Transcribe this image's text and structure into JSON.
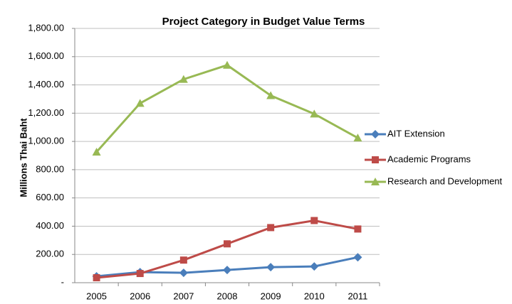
{
  "chart_data": {
    "type": "line",
    "title": "Project Category in Budget Value Terms",
    "y_label": "Millions Thai Baht",
    "categories": [
      "2005",
      "2006",
      "2007",
      "2008",
      "2009",
      "2010",
      "2011"
    ],
    "series": [
      {
        "name": "AIT Extension",
        "color": "#4a7ebb",
        "marker": "diamond",
        "values": [
          45,
          75,
          70,
          90,
          110,
          115,
          180
        ]
      },
      {
        "name": "Academic Programs",
        "color": "#be4b48",
        "marker": "square",
        "values": [
          35,
          65,
          160,
          275,
          390,
          440,
          380
        ]
      },
      {
        "name": "Research and Development",
        "color": "#98b954",
        "marker": "triangle",
        "values": [
          925,
          1270,
          1440,
          1540,
          1325,
          1195,
          1025
        ]
      }
    ],
    "ylim": [
      0,
      1800
    ],
    "yticks": [
      {
        "value": 0,
        "label": "-"
      },
      {
        "value": 200,
        "label": "200.00"
      },
      {
        "value": 400,
        "label": "400.00"
      },
      {
        "value": 600,
        "label": "600.00"
      },
      {
        "value": 800,
        "label": "800.00"
      },
      {
        "value": 1000,
        "label": "1,000.00"
      },
      {
        "value": 1200,
        "label": "1,200.00"
      },
      {
        "value": 1400,
        "label": "1,400.00"
      },
      {
        "value": 1600,
        "label": "1,600.00"
      },
      {
        "value": 1800,
        "label": "1,800.00"
      }
    ],
    "grid": true,
    "legend": "right"
  }
}
